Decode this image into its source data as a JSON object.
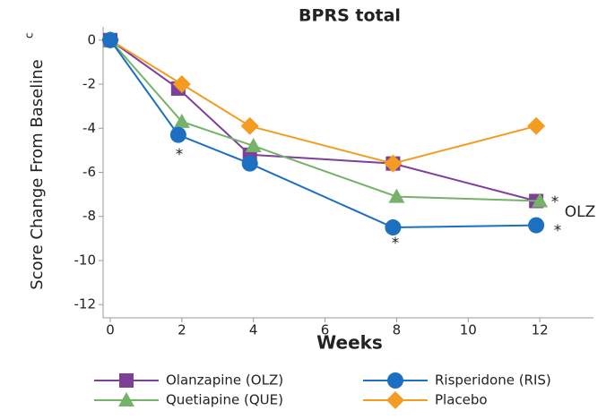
{
  "chart_data": {
    "type": "line",
    "title": "BPRS total",
    "xlabel": "Weeks",
    "ylabel": "Score Change From Baseline",
    "ylabel_superscript": "c",
    "xlim": [
      -0.2,
      13.5
    ],
    "ylim": [
      -12.6,
      0.6
    ],
    "xticks": [
      0,
      2,
      4,
      6,
      8,
      10,
      12
    ],
    "yticks": [
      0,
      -2,
      -4,
      -6,
      -8,
      -10,
      -12
    ],
    "grid": false,
    "series": [
      {
        "name": "Olanzapine (OLZ)",
        "color": "#7e3f98",
        "marker": "square",
        "x": [
          0,
          1.9,
          3.9,
          7.9,
          11.9
        ],
        "values": [
          0,
          -2.2,
          -5.2,
          -5.6,
          -7.3
        ]
      },
      {
        "name": "Quetiapine (QUE)",
        "color": "#77b26a",
        "marker": "triangle",
        "x": [
          0,
          2,
          4,
          8,
          12
        ],
        "values": [
          0,
          -3.7,
          -4.8,
          -7.1,
          -7.3
        ]
      },
      {
        "name": "Placebo",
        "color": "#f49b22",
        "marker": "diamond",
        "x": [
          0,
          2,
          3.9,
          7.9,
          11.9
        ],
        "values": [
          0,
          -2,
          -3.9,
          -5.6,
          -3.9
        ]
      },
      {
        "name": "Risperidone (RIS)",
        "color": "#1c6fc1",
        "marker": "circle",
        "x": [
          0,
          1.9,
          3.9,
          7.9,
          11.9
        ],
        "values": [
          0,
          -4.3,
          -5.6,
          -8.5,
          -8.4
        ]
      }
    ],
    "annotations": [
      "*",
      "*",
      "*",
      "OLZ",
      "*"
    ]
  }
}
